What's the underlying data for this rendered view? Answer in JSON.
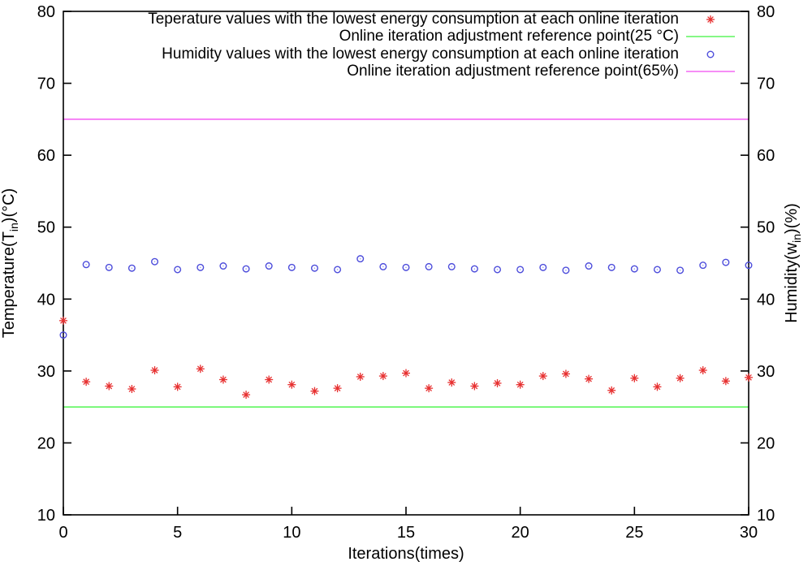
{
  "colors": {
    "background": "#ffffff",
    "frame": "#000000",
    "temperature_marker": "#e73030",
    "humidity_marker": "#4c4cdb",
    "temp_reference_line": "#5ef65e",
    "humidity_reference_line": "#f468f4"
  },
  "chart_data": {
    "type": "scatter",
    "title": "",
    "xlabel": "Iterations(times)",
    "ylabel_left": "Temperature(T_in)(°C)",
    "ylabel_right": "Humidity(w_in)(%)",
    "ylabel_left_parts": {
      "pre": "Temperature(T",
      "sub": "in",
      "post": ")(°C)"
    },
    "ylabel_right_parts": {
      "pre": "Humidity(w",
      "sub": "in",
      "post": ")(%)"
    },
    "xlim": [
      0,
      30
    ],
    "ylim_left": [
      10,
      80
    ],
    "ylim_right": [
      10,
      80
    ],
    "x_ticks": [
      0,
      5,
      10,
      15,
      20,
      25,
      30
    ],
    "y_ticks": [
      10,
      20,
      30,
      40,
      50,
      60,
      70,
      80
    ],
    "grid": false,
    "legend_position": "top-inside-right-aligned",
    "x": [
      0,
      1,
      2,
      3,
      4,
      5,
      6,
      7,
      8,
      9,
      10,
      11,
      12,
      13,
      14,
      15,
      16,
      17,
      18,
      19,
      20,
      21,
      22,
      23,
      24,
      25,
      26,
      27,
      28,
      29,
      30
    ],
    "series": [
      {
        "name": "Teperature values with the lowest energy consumption at each online iteration",
        "type": "points",
        "marker": "asterisk",
        "color": "#e73030",
        "axis": "left",
        "values": [
          37.0,
          28.5,
          27.9,
          27.5,
          30.1,
          27.8,
          30.3,
          28.8,
          26.7,
          28.8,
          28.1,
          27.2,
          27.6,
          29.2,
          29.3,
          29.7,
          27.6,
          28.4,
          27.9,
          28.3,
          28.1,
          29.3,
          29.6,
          28.9,
          27.3,
          29.0,
          27.8,
          29.0,
          30.1,
          28.6,
          29.1
        ]
      },
      {
        "name": "Online iteration adjustment reference point(25 °C)",
        "type": "hline",
        "color": "#5ef65e",
        "axis": "left",
        "value": 25
      },
      {
        "name": "Humidity values with the lowest energy consumption at each online iteration",
        "type": "points",
        "marker": "circle",
        "color": "#4c4cdb",
        "axis": "right",
        "values": [
          35.0,
          44.8,
          44.4,
          44.3,
          45.2,
          44.1,
          44.4,
          44.6,
          44.2,
          44.6,
          44.4,
          44.3,
          44.1,
          45.6,
          44.5,
          44.4,
          44.5,
          44.5,
          44.2,
          44.1,
          44.1,
          44.4,
          44.0,
          44.6,
          44.4,
          44.2,
          44.1,
          44.0,
          44.7,
          45.1,
          44.7
        ]
      },
      {
        "name": "Online iteration adjustment reference point(65%)",
        "type": "hline",
        "color": "#f468f4",
        "axis": "right",
        "value": 65
      }
    ]
  }
}
